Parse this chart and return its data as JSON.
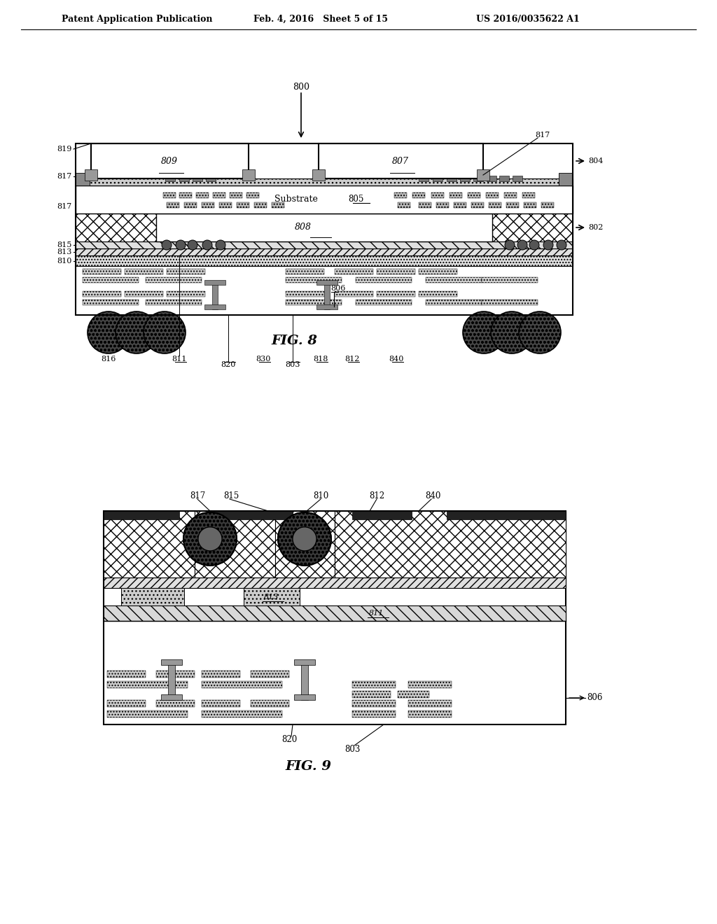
{
  "header_left": "Patent Application Publication",
  "header_mid": "Feb. 4, 2016   Sheet 5 of 15",
  "header_right": "US 2016/0035622 A1",
  "fig8_label": "FIG. 8",
  "fig9_label": "FIG. 9",
  "bg_color": "#ffffff"
}
